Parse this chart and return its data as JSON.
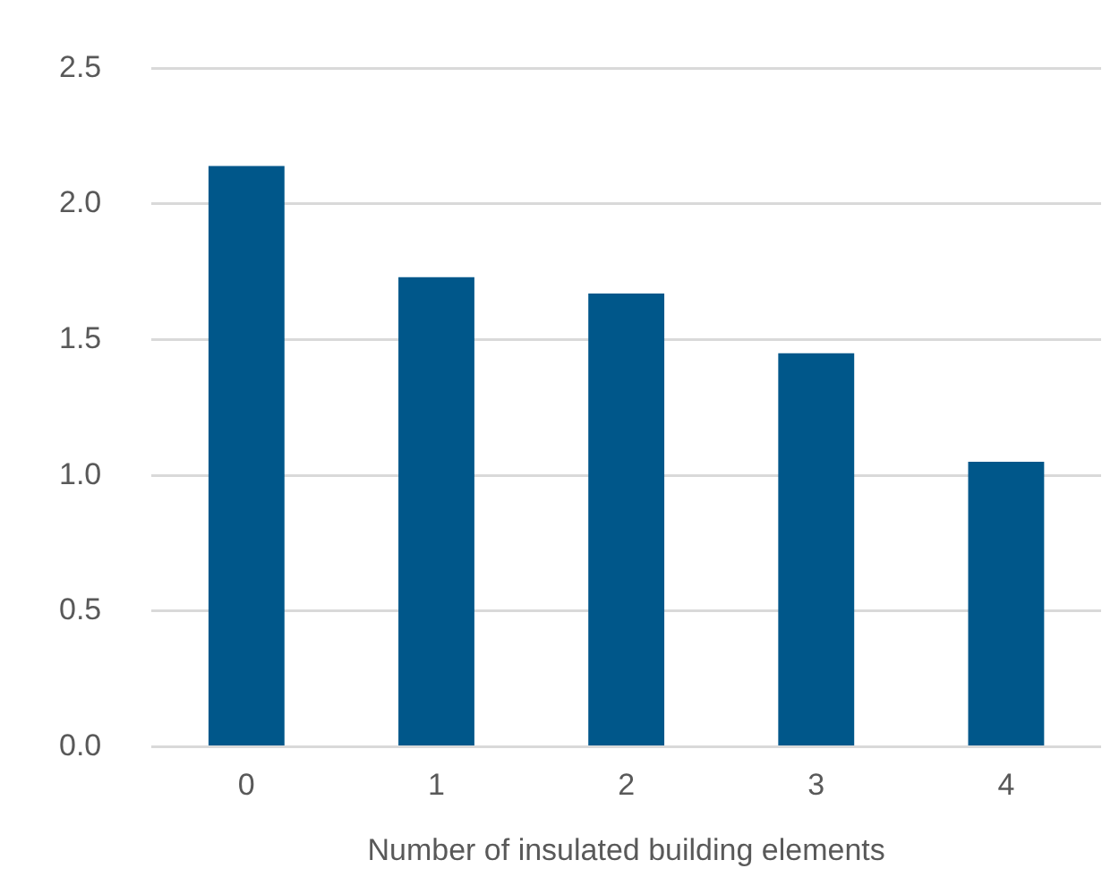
{
  "chart_data": {
    "type": "bar",
    "xlabel": "Number of insulated building elements",
    "categories": [
      "0",
      "1",
      "2",
      "3",
      "4"
    ],
    "values": [
      2.14,
      1.73,
      1.67,
      1.45,
      1.05
    ],
    "color": "#00578a",
    "ylim": [
      0,
      2.5
    ],
    "yticks": [
      {
        "value": 0,
        "label": "0.0"
      },
      {
        "value": 0.5,
        "label": "0.5"
      },
      {
        "value": 1,
        "label": "1.0"
      },
      {
        "value": 1.5,
        "label": "1.5"
      },
      {
        "value": 2,
        "label": "2.0"
      },
      {
        "value": 2.5,
        "label": "2.5"
      }
    ],
    "grid": "y"
  }
}
